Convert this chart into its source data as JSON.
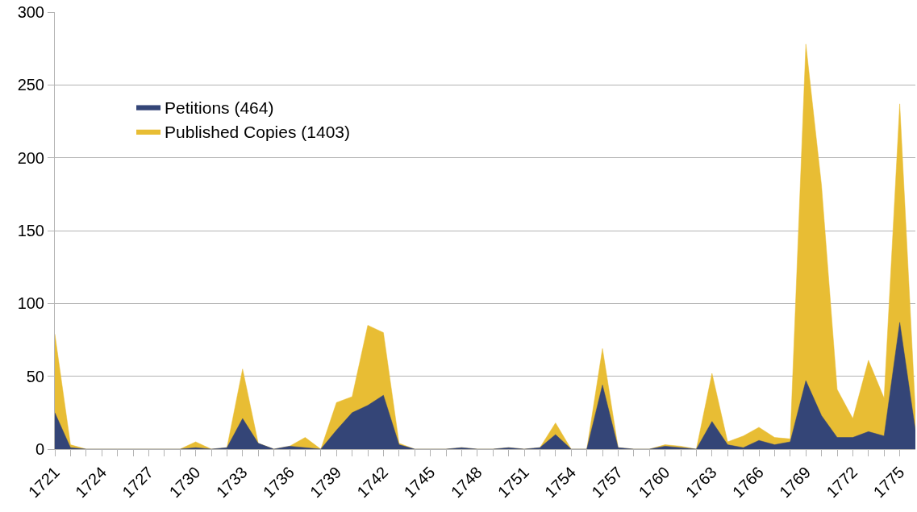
{
  "chart_data": {
    "type": "area",
    "x": [
      1721,
      1722,
      1723,
      1724,
      1725,
      1726,
      1727,
      1728,
      1729,
      1730,
      1731,
      1732,
      1733,
      1734,
      1735,
      1736,
      1737,
      1738,
      1739,
      1740,
      1741,
      1742,
      1743,
      1744,
      1745,
      1746,
      1747,
      1748,
      1749,
      1750,
      1751,
      1752,
      1753,
      1754,
      1755,
      1756,
      1757,
      1758,
      1759,
      1760,
      1761,
      1762,
      1763,
      1764,
      1765,
      1766,
      1767,
      1768,
      1769,
      1770,
      1771,
      1772,
      1773,
      1774,
      1775,
      1776
    ],
    "series": [
      {
        "name": "Petitions (464)",
        "color": "#344577",
        "values": [
          25,
          1,
          0,
          0,
          0,
          0,
          0,
          0,
          0,
          1,
          0,
          1,
          21,
          4,
          0,
          2,
          1,
          0,
          13,
          25,
          30,
          37,
          3,
          0,
          0,
          0,
          1,
          0,
          0,
          1,
          0,
          1,
          10,
          0,
          0,
          44,
          1,
          0,
          0,
          2,
          1,
          0,
          19,
          3,
          1,
          6,
          3,
          5,
          47,
          23,
          8,
          8,
          12,
          9,
          87,
          13
        ]
      },
      {
        "name": "Published Copies (1403)",
        "color": "#e8bd34",
        "values": [
          79,
          3,
          0,
          0,
          0,
          0,
          0,
          0,
          0,
          5,
          0,
          1,
          55,
          4,
          0,
          2,
          8,
          0,
          32,
          36,
          85,
          80,
          4,
          0,
          0,
          0,
          1,
          0,
          0,
          1,
          0,
          1,
          18,
          0,
          0,
          69,
          1,
          0,
          0,
          3,
          2,
          0,
          52,
          5,
          9,
          15,
          8,
          7,
          278,
          181,
          41,
          21,
          61,
          35,
          237,
          26
        ]
      }
    ],
    "xlim": [
      1721,
      1776
    ],
    "xticks": [
      1721,
      {
        "value": 1722,
        "label": null
      },
      {
        "value": 1723,
        "label": null
      },
      1724,
      {
        "value": 1725,
        "label": null
      },
      {
        "value": 1726,
        "label": null
      },
      1727,
      {
        "value": 1728,
        "label": null
      },
      {
        "value": 1729,
        "label": null
      },
      1730,
      {
        "value": 1731,
        "label": null
      },
      {
        "value": 1732,
        "label": null
      },
      1733,
      {
        "value": 1734,
        "label": null
      },
      {
        "value": 1735,
        "label": null
      },
      1736,
      {
        "value": 1737,
        "label": null
      },
      {
        "value": 1738,
        "label": null
      },
      1739,
      {
        "value": 1740,
        "label": null
      },
      {
        "value": 1741,
        "label": null
      },
      1742,
      {
        "value": 1743,
        "label": null
      },
      {
        "value": 1744,
        "label": null
      },
      1745,
      {
        "value": 1746,
        "label": null
      },
      {
        "value": 1747,
        "label": null
      },
      1748,
      {
        "value": 1749,
        "label": null
      },
      {
        "value": 1750,
        "label": null
      },
      1751,
      {
        "value": 1752,
        "label": null
      },
      {
        "value": 1753,
        "label": null
      },
      1754,
      {
        "value": 1755,
        "label": null
      },
      {
        "value": 1756,
        "label": null
      },
      1757,
      {
        "value": 1758,
        "label": null
      },
      {
        "value": 1759,
        "label": null
      },
      1760,
      {
        "value": 1761,
        "label": null
      },
      {
        "value": 1762,
        "label": null
      },
      1763,
      {
        "value": 1764,
        "label": null
      },
      {
        "value": 1765,
        "label": null
      },
      1766,
      {
        "value": 1767,
        "label": null
      },
      {
        "value": 1768,
        "label": null
      },
      1769,
      {
        "value": 1770,
        "label": null
      },
      {
        "value": 1771,
        "label": null
      },
      1772,
      {
        "value": 1773,
        "label": null
      },
      {
        "value": 1774,
        "label": null
      },
      1775
    ],
    "ylim": [
      0,
      300
    ],
    "yticks": [
      0,
      50,
      100,
      150,
      200,
      250,
      300
    ],
    "grid": "y",
    "legend": "top left"
  }
}
